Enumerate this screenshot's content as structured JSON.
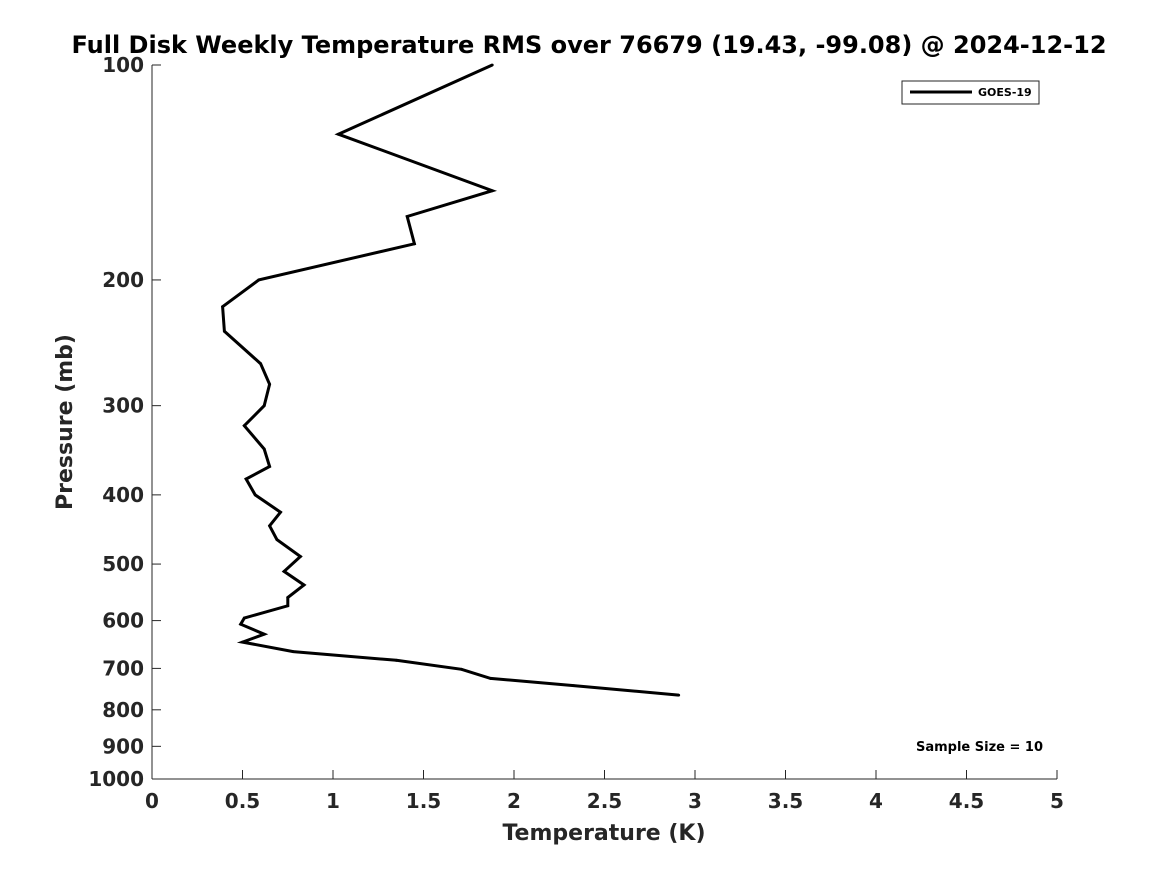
{
  "chart_data": {
    "type": "line",
    "title": "Full Disk Weekly Temperature RMS over 76679 (19.43, -99.08) @ 2024-12-12",
    "xlabel": "Temperature (K)",
    "ylabel": "Pressure (mb)",
    "xlim": [
      0,
      5
    ],
    "ylim": [
      100,
      1000
    ],
    "y_scale": "log",
    "y_reversed": true,
    "x_ticks": [
      0,
      0.5,
      1,
      1.5,
      2,
      2.5,
      3,
      3.5,
      4,
      4.5,
      5
    ],
    "x_tick_labels": [
      "0",
      "0.5",
      "1",
      "1.5",
      "2",
      "2.5",
      "3",
      "3.5",
      "4",
      "4.5",
      "5"
    ],
    "y_ticks": [
      100,
      200,
      300,
      400,
      500,
      600,
      700,
      800,
      900,
      1000
    ],
    "y_tick_labels": [
      "100",
      "200",
      "300",
      "400",
      "500",
      "600",
      "700",
      "800",
      "900",
      "1000"
    ],
    "grid": false,
    "legend_position": "top-right",
    "series": [
      {
        "name": "GOES-19",
        "color": "#000000",
        "points": [
          {
            "x": 1.88,
            "y": 100
          },
          {
            "x": 1.03,
            "y": 125
          },
          {
            "x": 1.88,
            "y": 150
          },
          {
            "x": 1.41,
            "y": 163
          },
          {
            "x": 1.45,
            "y": 178
          },
          {
            "x": 0.59,
            "y": 200
          },
          {
            "x": 0.39,
            "y": 218
          },
          {
            "x": 0.4,
            "y": 236
          },
          {
            "x": 0.6,
            "y": 262
          },
          {
            "x": 0.65,
            "y": 280
          },
          {
            "x": 0.62,
            "y": 300
          },
          {
            "x": 0.51,
            "y": 320
          },
          {
            "x": 0.62,
            "y": 345
          },
          {
            "x": 0.65,
            "y": 365
          },
          {
            "x": 0.52,
            "y": 380
          },
          {
            "x": 0.57,
            "y": 400
          },
          {
            "x": 0.71,
            "y": 423
          },
          {
            "x": 0.65,
            "y": 442
          },
          {
            "x": 0.69,
            "y": 462
          },
          {
            "x": 0.82,
            "y": 488
          },
          {
            "x": 0.73,
            "y": 512
          },
          {
            "x": 0.84,
            "y": 535
          },
          {
            "x": 0.75,
            "y": 557
          },
          {
            "x": 0.75,
            "y": 572
          },
          {
            "x": 0.51,
            "y": 595
          },
          {
            "x": 0.49,
            "y": 607
          },
          {
            "x": 0.62,
            "y": 627
          },
          {
            "x": 0.5,
            "y": 643
          },
          {
            "x": 0.78,
            "y": 663
          },
          {
            "x": 1.35,
            "y": 682
          },
          {
            "x": 1.71,
            "y": 702
          },
          {
            "x": 1.87,
            "y": 723
          },
          {
            "x": 2.33,
            "y": 740
          },
          {
            "x": 2.91,
            "y": 763
          }
        ]
      }
    ],
    "annotations": [
      {
        "text": "Sample Size = 10"
      }
    ]
  }
}
